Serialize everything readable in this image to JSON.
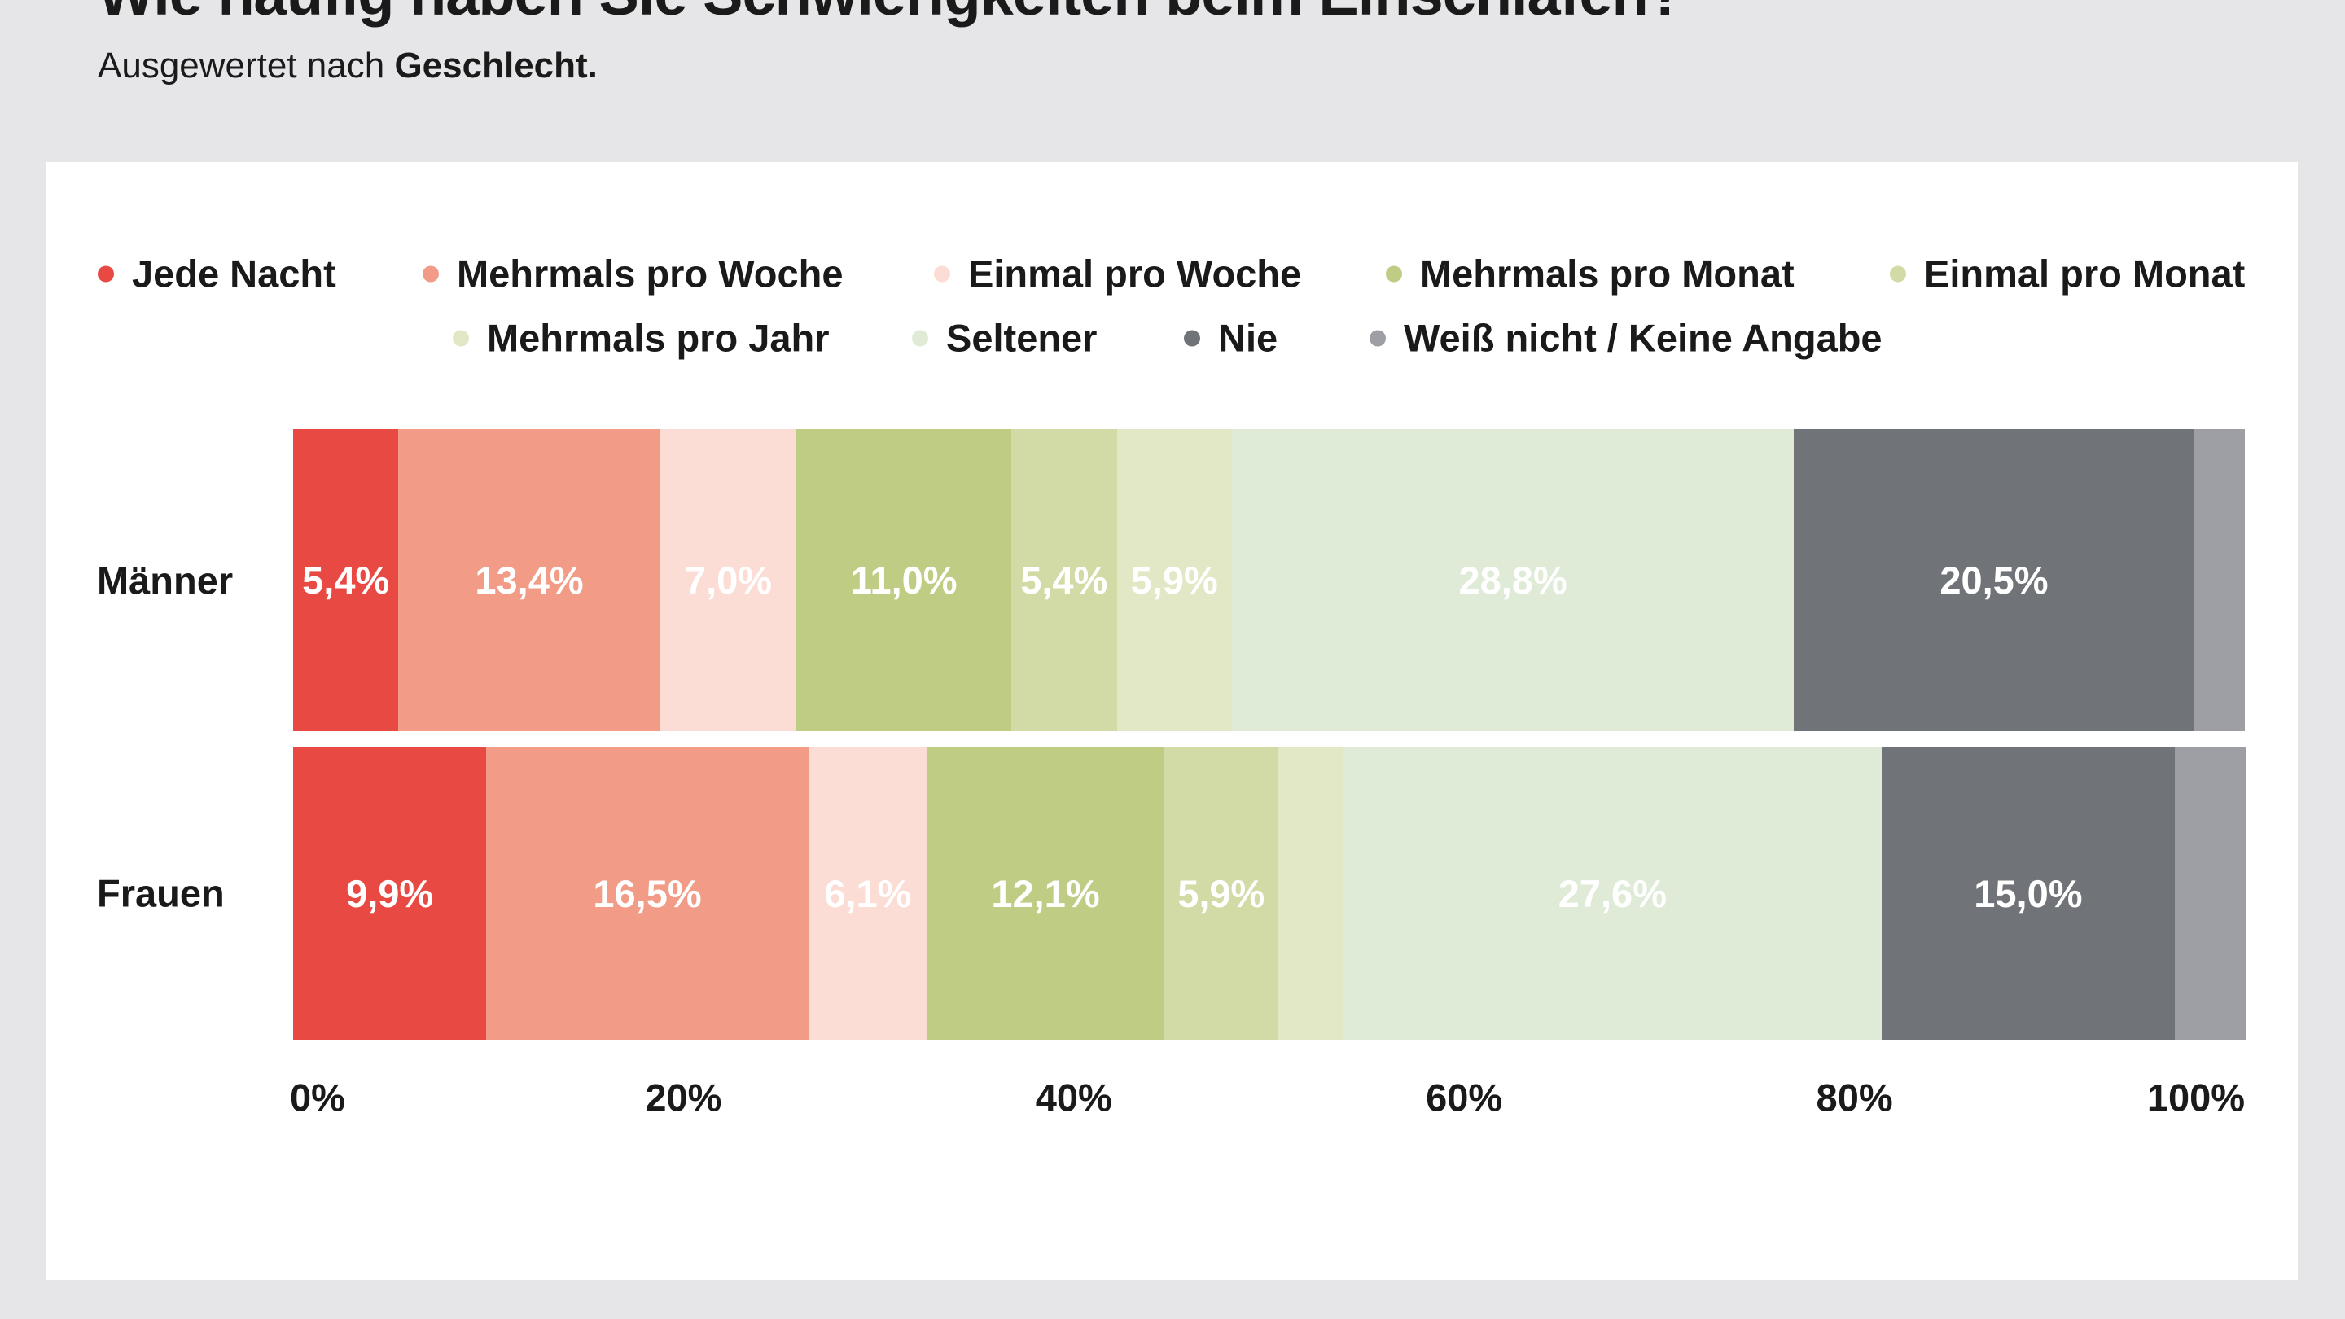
{
  "title": "Wie häufig haben Sie Schwierigkeiten beim Einschlafen?",
  "subtitle_prefix": "Ausgewertet nach",
  "subtitle_bold": "Geschlecht.",
  "chart_data": {
    "type": "bar",
    "orientation": "horizontal",
    "stacked": true,
    "categories": [
      "Männer",
      "Frauen"
    ],
    "series": [
      {
        "name": "Jede Nacht",
        "color": "#E84A43",
        "values": [
          5.4,
          9.9
        ],
        "labels": [
          "5,4%",
          "9,9%"
        ]
      },
      {
        "name": "Mehrmals pro Woche",
        "color": "#F29B87",
        "values": [
          13.4,
          16.5
        ],
        "labels": [
          "13,4%",
          "16,5%"
        ]
      },
      {
        "name": "Einmal pro Woche",
        "color": "#FBDDD5",
        "values": [
          7.0,
          6.1
        ],
        "labels": [
          "7,0%",
          "6,1%"
        ]
      },
      {
        "name": "Mehrmals pro Monat",
        "color": "#BFCC84",
        "values": [
          11.0,
          12.1
        ],
        "labels": [
          "11,0%",
          "12,1%"
        ]
      },
      {
        "name": "Einmal pro Monat",
        "color": "#D2DBA5",
        "values": [
          5.4,
          5.9
        ],
        "labels": [
          "5,4%",
          "5,9%"
        ]
      },
      {
        "name": "Mehrmals pro Jahr",
        "color": "#E2E7C6",
        "values": [
          5.9,
          3.3
        ],
        "labels": [
          "5,9%",
          ""
        ]
      },
      {
        "name": "Seltener",
        "color": "#DFEAD7",
        "values": [
          28.8,
          27.6
        ],
        "labels": [
          "28,8%",
          "27,6%"
        ]
      },
      {
        "name": "Nie",
        "color": "#707378",
        "values": [
          20.5,
          15.0
        ],
        "labels": [
          "20,5%",
          "15,0%"
        ]
      },
      {
        "name": "Weiß nicht / Keine Angabe",
        "color": "#9E9FA4",
        "values": [
          2.6,
          3.7
        ],
        "labels": [
          "",
          ""
        ]
      }
    ],
    "xlim": [
      0,
      100
    ],
    "xticks": [
      "0%",
      "20%",
      "40%",
      "60%",
      "80%",
      "100%"
    ],
    "legend_position": "top",
    "grid": false
  }
}
